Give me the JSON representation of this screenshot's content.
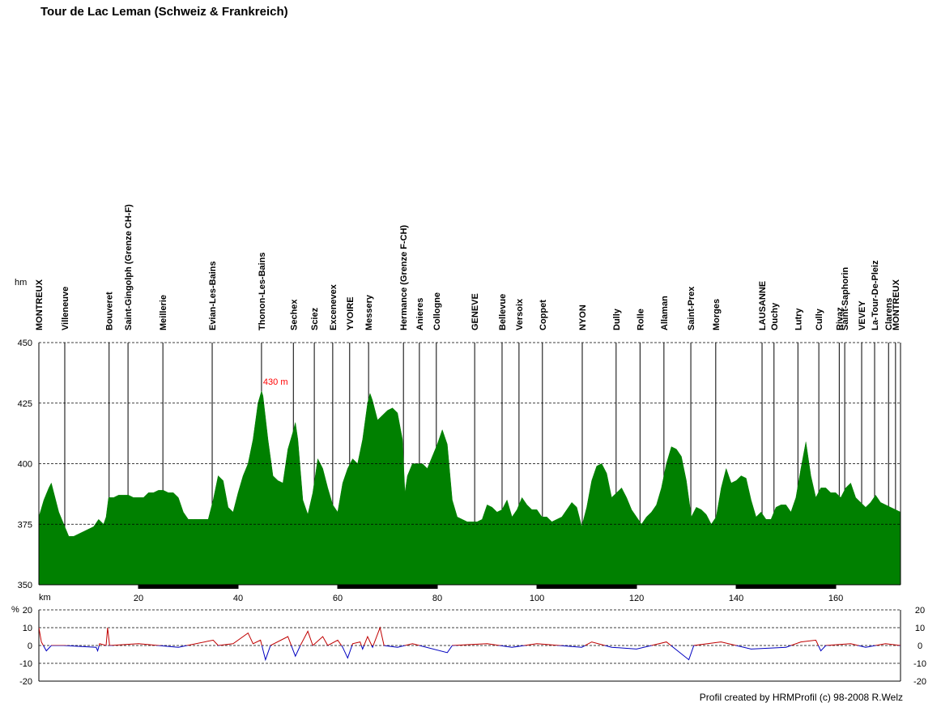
{
  "footer": "Profil created by HRMProfil (c) 98-2008 R.Welz",
  "chart_data": [
    {
      "type": "area",
      "title": "Tour de Lac Leman (Schweiz & Frankreich)",
      "x_label": "km",
      "y_label": "hm",
      "color": "#008000",
      "grid": true,
      "xlim": [
        0,
        173
      ],
      "ylim": [
        350,
        450
      ],
      "xticks": [
        20,
        40,
        60,
        80,
        100,
        120,
        140,
        160
      ],
      "yticks": [
        350,
        375,
        400,
        425,
        450
      ],
      "x": [
        0,
        1,
        2,
        2.5,
        3,
        4,
        5,
        6,
        7,
        8,
        9,
        10,
        11,
        12,
        13,
        13.5,
        14,
        15,
        16,
        17,
        18,
        19,
        20,
        21,
        22,
        23,
        24,
        25,
        26,
        27,
        28,
        29,
        30,
        31,
        32,
        33,
        34,
        35,
        36,
        37,
        38,
        39,
        40,
        41,
        42,
        43,
        44,
        44.7,
        45,
        46,
        47,
        48,
        49,
        50,
        51,
        51.5,
        52,
        53,
        54,
        55,
        56,
        57,
        58,
        59,
        60,
        61,
        62,
        63,
        64,
        65,
        66,
        66.5,
        67,
        68,
        69,
        70,
        71,
        72,
        73,
        73.5,
        74,
        75,
        76,
        77,
        78,
        79,
        80,
        81,
        82,
        83,
        84,
        85,
        86,
        87,
        88,
        89,
        90,
        91,
        92,
        93,
        94,
        95,
        96,
        97,
        98,
        99,
        100,
        101,
        102,
        103,
        104,
        105,
        106,
        107,
        108,
        109,
        110,
        111,
        112,
        113,
        114,
        115,
        116,
        117,
        118,
        119,
        120,
        121,
        122,
        123,
        124,
        125,
        126,
        127,
        128,
        129,
        130,
        131,
        132,
        133,
        134,
        135,
        136,
        137,
        138,
        139,
        140,
        141,
        142,
        143,
        144,
        145,
        146,
        147,
        148,
        149,
        150,
        151,
        152,
        153,
        154,
        155,
        156,
        157,
        158,
        159,
        160,
        161,
        162,
        163,
        164,
        165,
        166,
        167,
        168,
        169,
        170,
        171,
        172,
        173
      ],
      "values": [
        378,
        385,
        390,
        392,
        388,
        380,
        375,
        370,
        370,
        371,
        372,
        373,
        374,
        377,
        375,
        378,
        386,
        386,
        387,
        387,
        387,
        386,
        386,
        386,
        388,
        388,
        389,
        389,
        388,
        388,
        386,
        380,
        377,
        377,
        377,
        377,
        377,
        385,
        395,
        393,
        382,
        380,
        388,
        395,
        400,
        410,
        425,
        430,
        428,
        410,
        395,
        393,
        392,
        406,
        413,
        417,
        410,
        385,
        379,
        388,
        402,
        398,
        390,
        383,
        380,
        392,
        398,
        402,
        400,
        410,
        425,
        429,
        426,
        418,
        420,
        422,
        423,
        421,
        410,
        388,
        395,
        400,
        400,
        400,
        398,
        403,
        408,
        414,
        408,
        385,
        378,
        377,
        376,
        376,
        376,
        377,
        383,
        382,
        380,
        381,
        385,
        378,
        381,
        386,
        383,
        381,
        381,
        378,
        378,
        376,
        377,
        378,
        381,
        384,
        382,
        374,
        382,
        393,
        399,
        400,
        396,
        386,
        388,
        390,
        386,
        381,
        378,
        375,
        378,
        380,
        383,
        390,
        400,
        407,
        406,
        403,
        393,
        378,
        382,
        381,
        379,
        375,
        378,
        390,
        398,
        392,
        393,
        395,
        394,
        385,
        378,
        380,
        377,
        377,
        382,
        383,
        383,
        380,
        386,
        398,
        409,
        395,
        386,
        390,
        390,
        388,
        388,
        386,
        390,
        392,
        386,
        384,
        382,
        384,
        387,
        384,
        383,
        382,
        381,
        380
      ],
      "annotations": [
        {
          "text": "430 m",
          "x": 44.7,
          "y": 430,
          "color": "#ff0000"
        }
      ],
      "places": [
        {
          "name": "MONTREUX",
          "km": 0
        },
        {
          "name": "Villeneuve",
          "km": 5.2
        },
        {
          "name": "Bouveret",
          "km": 14.1
        },
        {
          "name": "Saint-Gingolph (Grenze CH-F)",
          "km": 17.9
        },
        {
          "name": "Meillerie",
          "km": 24.9
        },
        {
          "name": "Evian-Les-Bains",
          "km": 34.8
        },
        {
          "name": "Thonon-Les-Bains",
          "km": 44.7
        },
        {
          "name": "Sechex",
          "km": 51.1
        },
        {
          "name": "Sciez",
          "km": 55.3
        },
        {
          "name": "Excenevex",
          "km": 59.0
        },
        {
          "name": "YVOIRE",
          "km": 62.4
        },
        {
          "name": "Messery",
          "km": 66.2
        },
        {
          "name": "Hermance (Grenze F-CH)",
          "km": 73.2
        },
        {
          "name": "Anieres",
          "km": 76.4
        },
        {
          "name": "Collogne",
          "km": 79.8
        },
        {
          "name": "GENEVE",
          "km": 87.5
        },
        {
          "name": "Bellevue",
          "km": 93.0
        },
        {
          "name": "Versoix",
          "km": 96.4
        },
        {
          "name": "Coppet",
          "km": 101.1
        },
        {
          "name": "NYON",
          "km": 109.1
        },
        {
          "name": "Dully",
          "km": 115.9
        },
        {
          "name": "Rolle",
          "km": 120.7
        },
        {
          "name": "Allaman",
          "km": 125.5
        },
        {
          "name": "Saint-Prex",
          "km": 130.9
        },
        {
          "name": "Morges",
          "km": 135.9
        },
        {
          "name": "LAUSANNE",
          "km": 145.2
        },
        {
          "name": "Ouchy",
          "km": 147.6
        },
        {
          "name": "Lutry",
          "km": 152.4
        },
        {
          "name": "Cully",
          "km": 156.6
        },
        {
          "name": "Rivaz",
          "km": 160.7
        },
        {
          "name": "Saint-Saphorin",
          "km": 161.8
        },
        {
          "name": "VEVEY",
          "km": 165.2
        },
        {
          "name": "La-Tour-De-Pleiz",
          "km": 167.8
        },
        {
          "name": "Clarens",
          "km": 170.6
        },
        {
          "name": "MONTREUX",
          "km": 172.0
        }
      ]
    },
    {
      "type": "line",
      "y_label": "%",
      "color": "#c00000",
      "negative_color": "#0000c0",
      "grid": true,
      "xlim": [
        0,
        173
      ],
      "ylim": [
        -20,
        20
      ],
      "yticks": [
        -20,
        -10,
        0,
        10,
        20
      ],
      "x": [
        0,
        0.5,
        1.5,
        2.5,
        5,
        11.5,
        11.8,
        12.2,
        13.5,
        13.8,
        14.2,
        20,
        28,
        35,
        36,
        39,
        42,
        43,
        44.5,
        45.5,
        46.5,
        50,
        51.5,
        52.5,
        54,
        55,
        57,
        58,
        60,
        61,
        62,
        63,
        64.5,
        65,
        66,
        67,
        68.5,
        69.3,
        72,
        75,
        82,
        83,
        90,
        95,
        100,
        109,
        111,
        115,
        120,
        126,
        130.5,
        131.5,
        137,
        143,
        150,
        153,
        156,
        157,
        158,
        163,
        166,
        170,
        173
      ],
      "values": [
        10,
        2,
        -3,
        0,
        0,
        -1,
        -3,
        1,
        0,
        10,
        0,
        1,
        -1,
        3,
        0,
        1,
        7,
        1,
        3,
        -8,
        0,
        5,
        -6,
        0,
        8,
        0,
        5,
        0,
        3,
        -1,
        -7,
        1,
        2,
        -2,
        5,
        -1,
        10,
        0,
        -1,
        1,
        -4,
        0,
        1,
        -1,
        1,
        -1,
        2,
        -1,
        -2,
        2,
        -8,
        0,
        2,
        -2,
        -1,
        2,
        3,
        -3,
        0,
        1,
        -1,
        1,
        0
      ]
    }
  ]
}
